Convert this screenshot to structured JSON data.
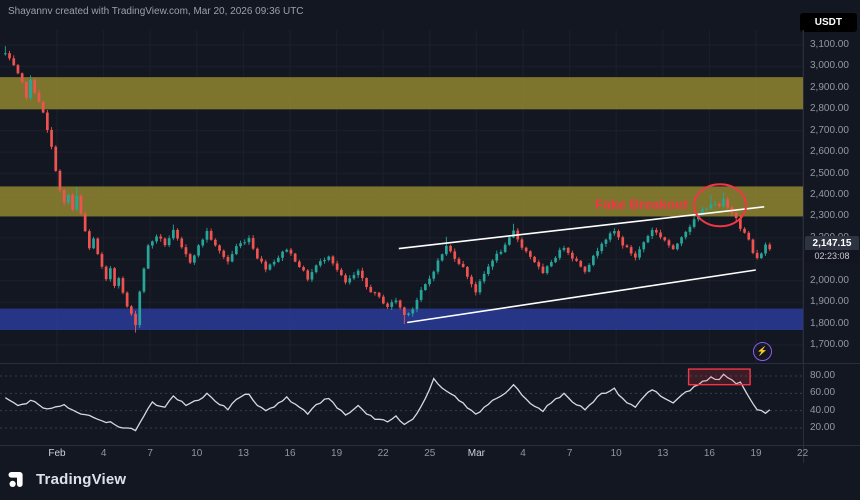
{
  "header": {
    "attribution": "Shayannv created with TradingView.com, Mar 20, 2026 09:36 UTC",
    "symbol_badge": "USDT"
  },
  "footer": {
    "logo_text": "TradingView"
  },
  "icons": {
    "boost_glyph": "⚡"
  },
  "annotations": {
    "fake_breakout": {
      "text": "Fake Breakout",
      "color": "#f23645"
    }
  },
  "colors": {
    "background": "#131722",
    "grid": "#1c202b",
    "axis_text": "#9598a1",
    "candle_up": "#26a69a",
    "candle_down": "#ef5350",
    "trendline": "#ffffff",
    "rsi_line": "#d6d9e0",
    "rsi_grid": "#3a3e4a",
    "highlight_red": "#f23645",
    "boost_purple": "#8d5cf0",
    "separator": "#2a2e39"
  },
  "price_axis": {
    "ticks": [
      {
        "label": "3,100.00",
        "value": 3100
      },
      {
        "label": "3,000.00",
        "value": 3000
      },
      {
        "label": "2,900.00",
        "value": 2900
      },
      {
        "label": "2,800.00",
        "value": 2800
      },
      {
        "label": "2,700.00",
        "value": 2700
      },
      {
        "label": "2,600.00",
        "value": 2600
      },
      {
        "label": "2,500.00",
        "value": 2500
      },
      {
        "label": "2,400.00",
        "value": 2400
      },
      {
        "label": "2,300.00",
        "value": 2300
      },
      {
        "label": "2,200.00",
        "value": 2200
      },
      {
        "label": "2,000.00",
        "value": 2000
      },
      {
        "label": "1,900.00",
        "value": 1900
      },
      {
        "label": "1,800.00",
        "value": 1800
      },
      {
        "label": "1,700.00",
        "value": 1700
      }
    ],
    "last_price": {
      "label": "2,147.15",
      "value": 2147.15,
      "countdown": "02:23:08"
    }
  },
  "time_axis": {
    "labels": [
      "Feb",
      "4",
      "7",
      "10",
      "13",
      "16",
      "19",
      "22",
      "25",
      "Mar",
      "4",
      "7",
      "10",
      "13",
      "16",
      "19",
      "22"
    ]
  },
  "rsi_axis": {
    "ticks": [
      {
        "label": "80.00",
        "value": 80
      },
      {
        "label": "60.00",
        "value": 60
      },
      {
        "label": "40.00",
        "value": 40
      },
      {
        "label": "20.00",
        "value": 20
      }
    ]
  },
  "chart_data": {
    "type": "candlestick",
    "symbol": "USDT",
    "timeframe_note": "Feb 1 - Mar 20, intraday candles",
    "price_range": [
      1700,
      3100
    ],
    "grid_step": 100,
    "candles_total": 183,
    "last_close": 2147.15,
    "close_waypoints": [
      [
        0,
        3060
      ],
      [
        2,
        3000
      ],
      [
        4,
        2920
      ],
      [
        5,
        2860
      ],
      [
        6,
        2930
      ],
      [
        8,
        2840
      ],
      [
        9,
        2780
      ],
      [
        10,
        2700
      ],
      [
        11,
        2620
      ],
      [
        12,
        2520
      ],
      [
        13,
        2420
      ],
      [
        14,
        2360
      ],
      [
        15,
        2400
      ],
      [
        16,
        2330
      ],
      [
        17,
        2390
      ],
      [
        18,
        2310
      ],
      [
        19,
        2230
      ],
      [
        20,
        2150
      ],
      [
        21,
        2200
      ],
      [
        22,
        2120
      ],
      [
        23,
        2060
      ],
      [
        24,
        2000
      ],
      [
        25,
        2060
      ],
      [
        26,
        1980
      ],
      [
        27,
        2020
      ],
      [
        28,
        1940
      ],
      [
        29,
        1880
      ],
      [
        30,
        1840
      ],
      [
        31,
        1800
      ],
      [
        32,
        1950
      ],
      [
        33,
        2060
      ],
      [
        34,
        2160
      ],
      [
        36,
        2210
      ],
      [
        38,
        2170
      ],
      [
        40,
        2230
      ],
      [
        42,
        2150
      ],
      [
        44,
        2090
      ],
      [
        46,
        2160
      ],
      [
        48,
        2230
      ],
      [
        50,
        2160
      ],
      [
        53,
        2090
      ],
      [
        55,
        2160
      ],
      [
        58,
        2200
      ],
      [
        60,
        2110
      ],
      [
        62,
        2060
      ],
      [
        65,
        2110
      ],
      [
        67,
        2150
      ],
      [
        70,
        2070
      ],
      [
        72,
        2010
      ],
      [
        74,
        2070
      ],
      [
        77,
        2120
      ],
      [
        79,
        2050
      ],
      [
        81,
        1990
      ],
      [
        84,
        2040
      ],
      [
        86,
        1970
      ],
      [
        89,
        1920
      ],
      [
        91,
        1880
      ],
      [
        93,
        1910
      ],
      [
        95,
        1840
      ],
      [
        97,
        1870
      ],
      [
        99,
        1950
      ],
      [
        101,
        2010
      ],
      [
        103,
        2090
      ],
      [
        105,
        2160
      ],
      [
        107,
        2110
      ],
      [
        109,
        2060
      ],
      [
        112,
        1950
      ],
      [
        114,
        2030
      ],
      [
        116,
        2100
      ],
      [
        119,
        2160
      ],
      [
        121,
        2230
      ],
      [
        123,
        2160
      ],
      [
        126,
        2090
      ],
      [
        128,
        2030
      ],
      [
        130,
        2090
      ],
      [
        133,
        2160
      ],
      [
        135,
        2110
      ],
      [
        138,
        2050
      ],
      [
        140,
        2110
      ],
      [
        142,
        2180
      ],
      [
        145,
        2230
      ],
      [
        147,
        2170
      ],
      [
        150,
        2110
      ],
      [
        152,
        2180
      ],
      [
        154,
        2240
      ],
      [
        157,
        2190
      ],
      [
        159,
        2140
      ],
      [
        161,
        2210
      ],
      [
        164,
        2280
      ],
      [
        166,
        2330
      ],
      [
        168,
        2360
      ],
      [
        170,
        2345
      ],
      [
        171,
        2375
      ],
      [
        172,
        2340
      ],
      [
        174,
        2300
      ],
      [
        175,
        2250
      ],
      [
        177,
        2190
      ],
      [
        178,
        2130
      ],
      [
        179,
        2100
      ],
      [
        181,
        2165
      ],
      [
        182,
        2147
      ]
    ],
    "wick_overrides": [
      {
        "i": 0,
        "high": 3095
      },
      {
        "i": 6,
        "high": 2958
      },
      {
        "i": 17,
        "high": 2438
      },
      {
        "i": 31,
        "low": 1758
      },
      {
        "i": 40,
        "high": 2262
      },
      {
        "i": 95,
        "low": 1798
      },
      {
        "i": 105,
        "high": 2205
      },
      {
        "i": 121,
        "high": 2266
      },
      {
        "i": 168,
        "high": 2400
      },
      {
        "i": 171,
        "high": 2412
      }
    ],
    "zones": [
      {
        "name": "resistance-upper",
        "from": 2800,
        "to": 2950,
        "color": "#89802f",
        "opacity": 0.9
      },
      {
        "name": "resistance-mid",
        "from": 2300,
        "to": 2440,
        "color": "#89802f",
        "opacity": 0.9
      },
      {
        "name": "support",
        "from": 1770,
        "to": 1870,
        "color": "#2a3b96",
        "opacity": 0.85
      }
    ],
    "trendlines": [
      {
        "name": "channel-top",
        "from": [
          94,
          2150
        ],
        "to": [
          181,
          2345
        ]
      },
      {
        "name": "channel-bottom",
        "from": [
          96,
          1805
        ],
        "to": [
          179,
          2050
        ]
      }
    ],
    "fake_breakout_circle": {
      "index": 170.5,
      "price": 2352
    },
    "rsi": {
      "type": "line",
      "range": [
        0,
        100
      ],
      "levels": [
        80,
        60,
        40,
        20
      ],
      "waypoints": [
        [
          0,
          55
        ],
        [
          3,
          46
        ],
        [
          6,
          52
        ],
        [
          10,
          42
        ],
        [
          14,
          47
        ],
        [
          18,
          36
        ],
        [
          22,
          30
        ],
        [
          26,
          24
        ],
        [
          29,
          20
        ],
        [
          31,
          17
        ],
        [
          33,
          34
        ],
        [
          35,
          50
        ],
        [
          38,
          44
        ],
        [
          40,
          57
        ],
        [
          43,
          46
        ],
        [
          46,
          52
        ],
        [
          48,
          60
        ],
        [
          51,
          47
        ],
        [
          53,
          41
        ],
        [
          55,
          53
        ],
        [
          58,
          59
        ],
        [
          60,
          46
        ],
        [
          62,
          40
        ],
        [
          65,
          49
        ],
        [
          67,
          56
        ],
        [
          70,
          44
        ],
        [
          72,
          36
        ],
        [
          74,
          47
        ],
        [
          77,
          54
        ],
        [
          79,
          43
        ],
        [
          81,
          35
        ],
        [
          84,
          46
        ],
        [
          86,
          36
        ],
        [
          89,
          30
        ],
        [
          91,
          27
        ],
        [
          93,
          34
        ],
        [
          95,
          24
        ],
        [
          97,
          30
        ],
        [
          99,
          45
        ],
        [
          102,
          77
        ],
        [
          104,
          66
        ],
        [
          107,
          57
        ],
        [
          109,
          49
        ],
        [
          112,
          36
        ],
        [
          114,
          44
        ],
        [
          116,
          52
        ],
        [
          119,
          60
        ],
        [
          121,
          70
        ],
        [
          123,
          58
        ],
        [
          126,
          45
        ],
        [
          128,
          39
        ],
        [
          130,
          49
        ],
        [
          133,
          60
        ],
        [
          135,
          50
        ],
        [
          138,
          41
        ],
        [
          140,
          50
        ],
        [
          142,
          60
        ],
        [
          145,
          66
        ],
        [
          147,
          54
        ],
        [
          150,
          44
        ],
        [
          152,
          56
        ],
        [
          154,
          64
        ],
        [
          157,
          54
        ],
        [
          159,
          49
        ],
        [
          161,
          58
        ],
        [
          164,
          68
        ],
        [
          166,
          74
        ],
        [
          168,
          79
        ],
        [
          170,
          76
        ],
        [
          171,
          82
        ],
        [
          172,
          78
        ],
        [
          174,
          71
        ],
        [
          175,
          73
        ],
        [
          177,
          56
        ],
        [
          178,
          48
        ],
        [
          179,
          41
        ],
        [
          181,
          37
        ],
        [
          182,
          41
        ]
      ],
      "highlight_box": {
        "from_index": 163,
        "to_index": 177,
        "from_value": 70,
        "to_value": 88
      }
    }
  }
}
